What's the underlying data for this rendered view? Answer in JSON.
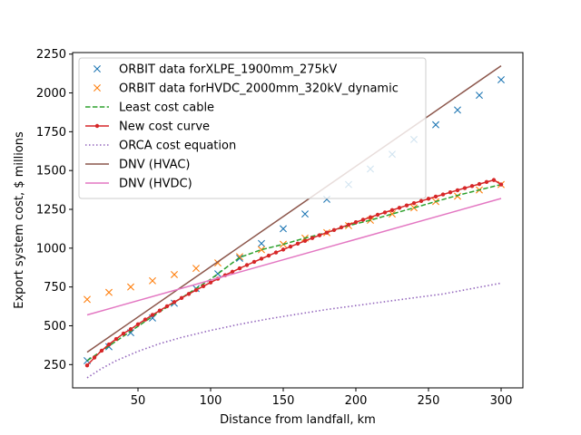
{
  "chart_data": {
    "type": "line",
    "title": "",
    "xlabel": "Distance from landfall, km",
    "ylabel": "Export system cost, $ millions",
    "xlim": [
      5,
      315
    ],
    "ylim": [
      100,
      2260
    ],
    "xticks": [
      50,
      100,
      150,
      200,
      250,
      300
    ],
    "yticks": [
      250,
      500,
      750,
      1000,
      1250,
      1500,
      1750,
      2000,
      2250
    ],
    "grid": false,
    "legend_position": "top-left",
    "series": [
      {
        "name": "ORBIT data forXLPE_1900mm_275kV",
        "kind": "marker-x",
        "color": "#1f77b4",
        "x": [
          15,
          30,
          45,
          60,
          75,
          90,
          105,
          120,
          135,
          150,
          165,
          180,
          195,
          210,
          225,
          240,
          255,
          270,
          285,
          300
        ],
        "y": [
          275,
          365,
          455,
          550,
          645,
          740,
          835,
          935,
          1030,
          1125,
          1220,
          1315,
          1410,
          1510,
          1605,
          1700,
          1795,
          1890,
          1985,
          2085
        ]
      },
      {
        "name": "ORBIT data forHVDC_2000mm_320kV_dynamic",
        "kind": "marker-x",
        "color": "#ff7f0e",
        "x": [
          15,
          30,
          45,
          60,
          75,
          90,
          105,
          120,
          135,
          150,
          165,
          180,
          195,
          210,
          225,
          240,
          255,
          270,
          285,
          300
        ],
        "y": [
          670,
          715,
          750,
          790,
          830,
          870,
          905,
          945,
          990,
          1025,
          1065,
          1100,
          1145,
          1180,
          1220,
          1260,
          1300,
          1335,
          1375,
          1410
        ]
      },
      {
        "name": "Least cost cable",
        "kind": "dashed",
        "color": "#2ca02c",
        "x": [
          15,
          30,
          45,
          60,
          75,
          90,
          100,
          110,
          120,
          135,
          150,
          165,
          180,
          195,
          210,
          225,
          240,
          255,
          270,
          285,
          300
        ],
        "y": [
          275,
          370,
          465,
          560,
          650,
          740,
          800,
          870,
          940,
          990,
          1025,
          1065,
          1100,
          1145,
          1180,
          1220,
          1260,
          1300,
          1340,
          1375,
          1410
        ]
      },
      {
        "name": "New cost curve",
        "kind": "line-dot",
        "color": "#d62728",
        "x": [
          15,
          20,
          25,
          30,
          35,
          40,
          45,
          50,
          55,
          60,
          65,
          70,
          75,
          80,
          85,
          90,
          95,
          100,
          105,
          110,
          115,
          120,
          125,
          130,
          135,
          140,
          145,
          150,
          155,
          160,
          165,
          170,
          175,
          180,
          185,
          190,
          195,
          200,
          205,
          210,
          215,
          220,
          225,
          230,
          235,
          240,
          245,
          250,
          255,
          260,
          265,
          270,
          275,
          280,
          285,
          290,
          295,
          300
        ],
        "y": [
          245,
          295,
          340,
          380,
          415,
          450,
          478,
          510,
          540,
          570,
          598,
          626,
          653,
          679,
          705,
          730,
          755,
          779,
          803,
          826,
          848,
          870,
          891,
          912,
          932,
          952,
          972,
          991,
          1010,
          1029,
          1047,
          1065,
          1083,
          1100,
          1117,
          1134,
          1151,
          1167,
          1183,
          1199,
          1215,
          1230,
          1245,
          1260,
          1275,
          1290,
          1304,
          1318,
          1332,
          1346,
          1360,
          1373,
          1387,
          1400,
          1413,
          1426,
          1439,
          1410
        ]
      },
      {
        "name": "ORCA cost equation",
        "kind": "dotted",
        "color": "#9467bd",
        "x": [
          15,
          25,
          35,
          50,
          65,
          80,
          100,
          120,
          140,
          160,
          180,
          200,
          220,
          240,
          260,
          280,
          300
        ],
        "y": [
          165,
          225,
          275,
          335,
          385,
          425,
          470,
          510,
          545,
          575,
          605,
          630,
          655,
          680,
          705,
          740,
          775
        ]
      },
      {
        "name": "DNV (HVAC)",
        "kind": "solid",
        "color": "#8c564b",
        "x": [
          15,
          300
        ],
        "y": [
          330,
          2175
        ]
      },
      {
        "name": "DNV (HVDC)",
        "kind": "solid",
        "color": "#e377c2",
        "x": [
          15,
          300
        ],
        "y": [
          570,
          1320
        ]
      }
    ]
  }
}
